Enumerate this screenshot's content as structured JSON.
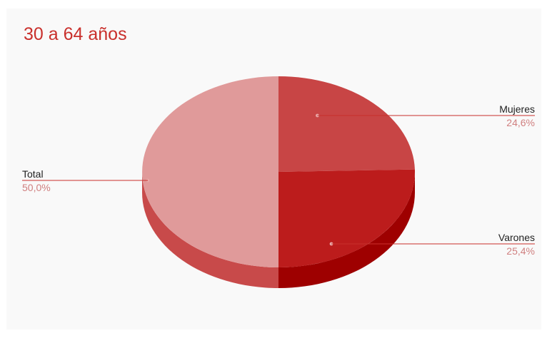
{
  "chart_data": {
    "type": "pie",
    "title": "30 a 64 años",
    "three_d": true,
    "legend": "labeled",
    "slices": [
      {
        "name": "Mujeres",
        "value": 24.6,
        "label": "24,6%",
        "color": "#c84545",
        "side_color": "#b02828"
      },
      {
        "name": "Varones",
        "value": 25.4,
        "label": "25,4%",
        "color": "#bc1c1c",
        "side_color": "#9e0000"
      },
      {
        "name": "Total",
        "value": 50.0,
        "label": "50,0%",
        "color": "#e09a9a",
        "side_color": "#c84a4a"
      }
    ]
  },
  "colors": {
    "title": "#c9302c",
    "background": "#f9f9f9"
  }
}
